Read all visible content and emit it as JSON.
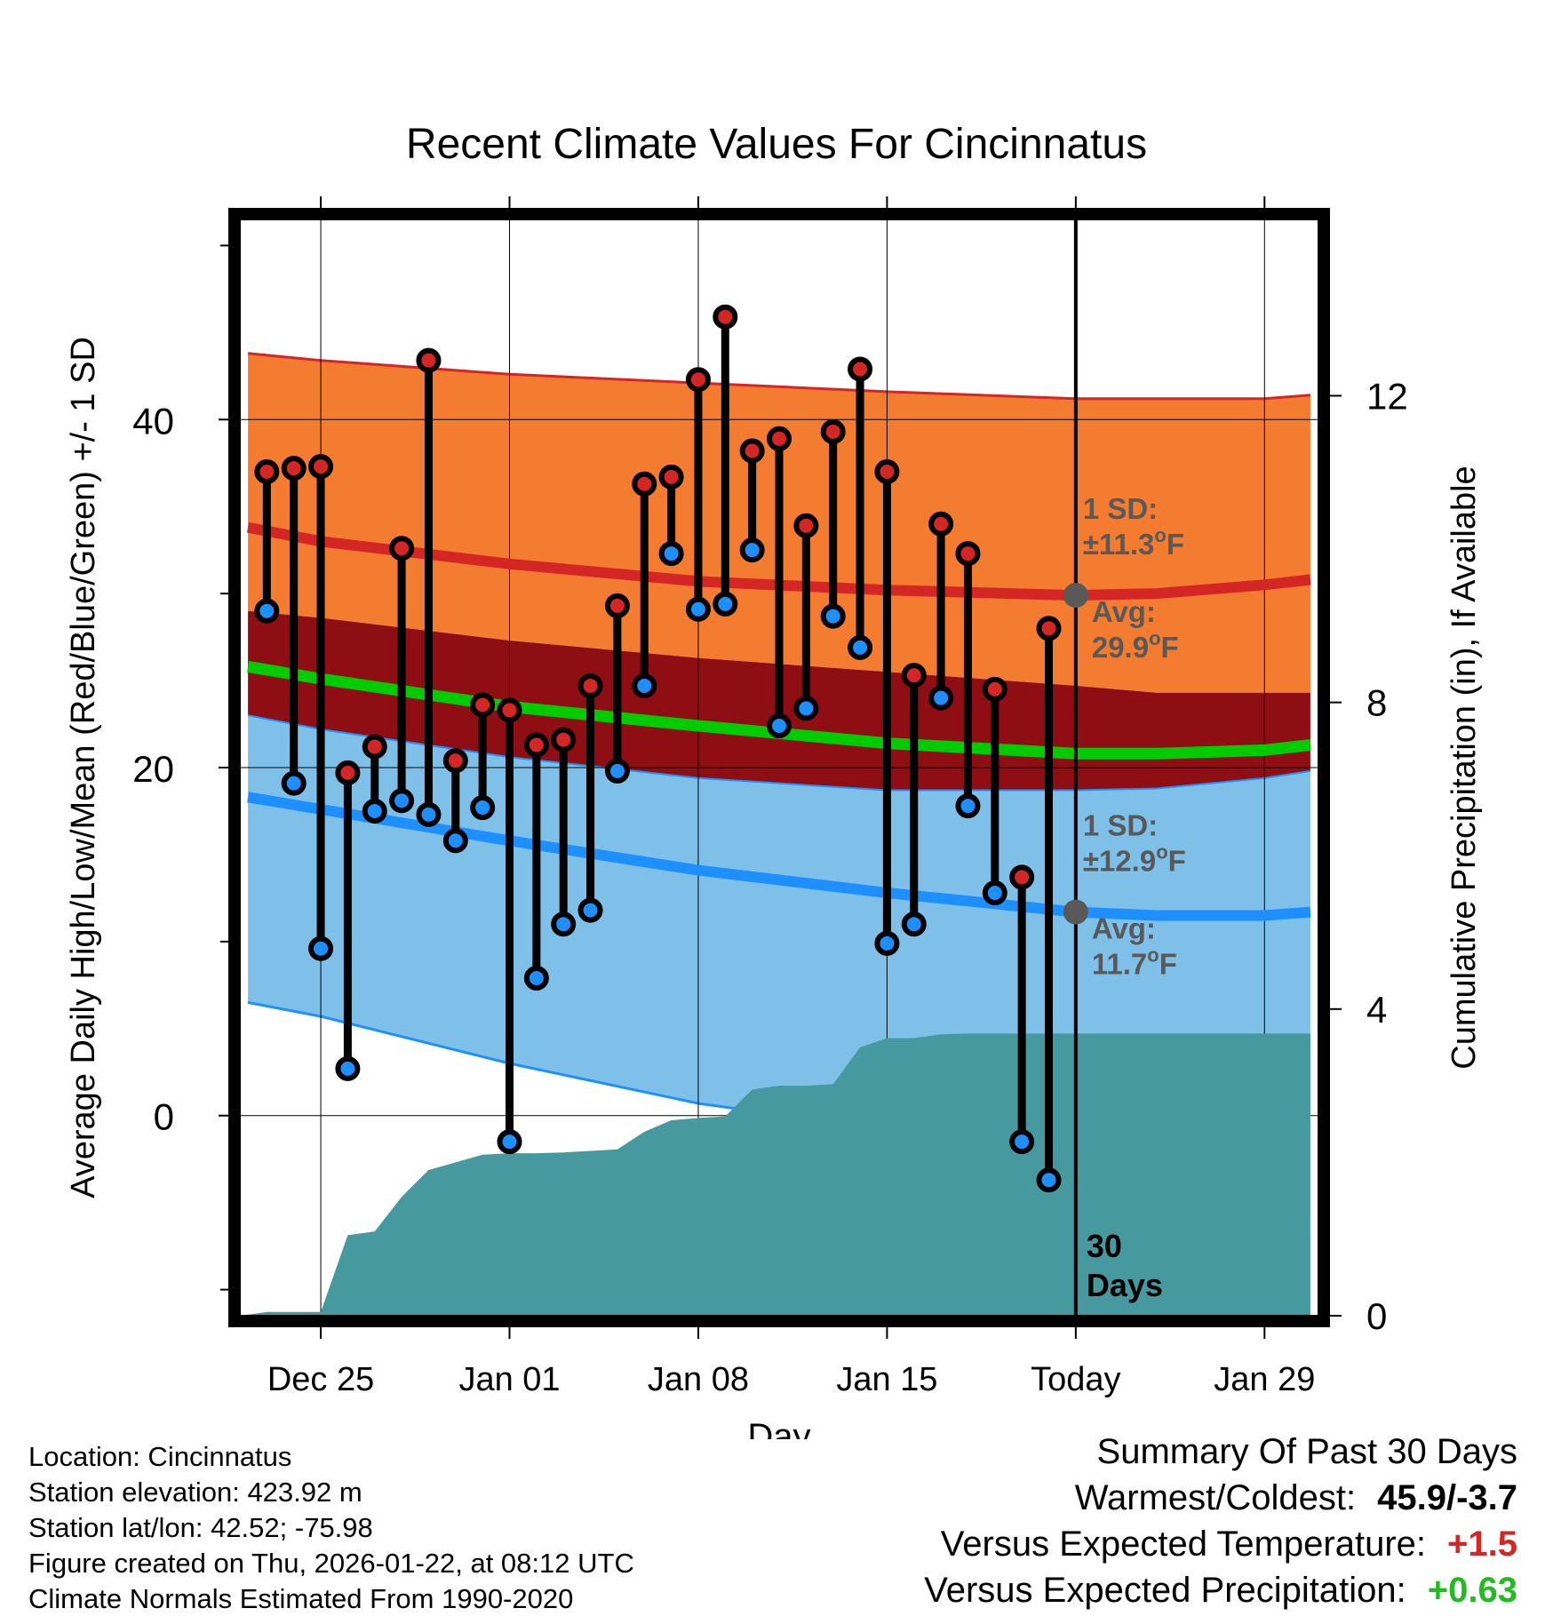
{
  "colors": {
    "high_band": "#f47c30",
    "mean_band": "#8e0e14",
    "low_band": "#7fc0e8",
    "high_line": "#d52626",
    "low_line": "#1e8fff",
    "mean_line": "#00cc00",
    "precip": "#46999f",
    "annotation": "#595959",
    "warm": "#d52626",
    "wet": "#22bb22"
  },
  "chart_data": {
    "type": "line",
    "title": "Recent Climate Values For Cincinnatus",
    "xlabel": "Day",
    "ylabel": "Average Daily High/Low/Mean (Red/Blue/Green) +/- 1 SD",
    "y2label": "Cumulative Precipitation (in), If Available",
    "xlim": [
      -3,
      37
    ],
    "ylim": [
      -11.5,
      51.5
    ],
    "y2lim": [
      0,
      14.3
    ],
    "y_ticks": [
      0,
      20,
      40
    ],
    "y_minor_ticks": [
      -10,
      10,
      30,
      50
    ],
    "y2_ticks": [
      0,
      4,
      8,
      12
    ],
    "x_ticks": [
      {
        "x": 0,
        "label": "Dec 25"
      },
      {
        "x": 7,
        "label": "Jan 01"
      },
      {
        "x": 14,
        "label": "Jan 08"
      },
      {
        "x": 21,
        "label": "Jan 15"
      },
      {
        "x": 28,
        "label": "Today"
      },
      {
        "x": 35,
        "label": "Jan 29"
      }
    ],
    "today_x": 28,
    "today_label": [
      "30",
      "Days"
    ],
    "normals_x": [
      -2.7,
      0,
      7,
      14,
      21,
      28,
      31,
      35,
      36.7
    ],
    "normal_high": [
      33.8,
      33.0,
      31.7,
      30.7,
      30.2,
      29.9,
      30.0,
      30.5,
      30.8
    ],
    "normal_high_hi": [
      43.8,
      43.4,
      42.6,
      42.1,
      41.6,
      41.2,
      41.2,
      41.2,
      41.4
    ],
    "normal_high_lo": [
      29.0,
      28.6,
      27.3,
      26.3,
      25.5,
      24.7,
      24.3,
      24.3,
      24.3
    ],
    "normal_mean": [
      25.8,
      25.1,
      23.5,
      22.4,
      21.4,
      20.8,
      20.8,
      21.0,
      21.3
    ],
    "normal_low": [
      18.3,
      17.6,
      15.8,
      14.1,
      12.8,
      11.7,
      11.5,
      11.5,
      11.7
    ],
    "normal_low_hi": [
      23.0,
      22.2,
      20.6,
      19.4,
      18.7,
      18.7,
      18.8,
      19.4,
      19.8
    ],
    "normal_low_lo": [
      6.5,
      5.7,
      3.0,
      0.7,
      -0.8,
      -1.0,
      -1.0,
      -0.7,
      -0.4
    ],
    "days": [
      -2,
      -1,
      0,
      1,
      2,
      3,
      4,
      5,
      6,
      7,
      8,
      9,
      10,
      11,
      12,
      13,
      14,
      15,
      16,
      17,
      18,
      19,
      20,
      21,
      22,
      23,
      24,
      25,
      26,
      27
    ],
    "daily_high": [
      37.0,
      37.2,
      37.3,
      19.7,
      21.2,
      32.6,
      43.4,
      20.4,
      23.6,
      23.3,
      21.3,
      21.6,
      24.7,
      29.3,
      36.3,
      36.7,
      42.3,
      45.9,
      38.2,
      38.9,
      33.9,
      39.3,
      42.9,
      37.0,
      25.3,
      34.0,
      32.3,
      24.5,
      13.7,
      28.0
    ],
    "daily_low": [
      29.0,
      19.1,
      9.6,
      2.7,
      17.5,
      18.1,
      17.3,
      15.8,
      17.7,
      -1.5,
      7.9,
      11.0,
      11.8,
      19.8,
      24.7,
      32.3,
      29.1,
      29.4,
      32.5,
      22.4,
      23.4,
      28.7,
      26.9,
      9.9,
      11.0,
      24.0,
      17.8,
      12.8,
      -1.5,
      -3.7
    ],
    "precip_x": [
      -3,
      -2,
      -1,
      0,
      1,
      2,
      3,
      4,
      5,
      6,
      7,
      8,
      9,
      10,
      11,
      12,
      13,
      14,
      15,
      16,
      17,
      18,
      19,
      20,
      21,
      22,
      23,
      24,
      25,
      26,
      27,
      28,
      36.7
    ],
    "precip": [
      0.0,
      0.05,
      0.05,
      0.05,
      1.05,
      1.1,
      1.55,
      1.9,
      2.0,
      2.1,
      2.12,
      2.12,
      2.13,
      2.15,
      2.17,
      2.4,
      2.55,
      2.58,
      2.6,
      2.95,
      3.0,
      3.0,
      3.02,
      3.5,
      3.62,
      3.62,
      3.67,
      3.68,
      3.68,
      3.68,
      3.68,
      3.68,
      3.68
    ],
    "annotations": {
      "high": {
        "sd_line1": "1 SD:",
        "sd_line2": "±11.3",
        "avg_line1": "Avg:",
        "avg_line2": "29.9",
        "unit": "F",
        "avg": 29.9
      },
      "low": {
        "sd_line1": "1 SD:",
        "sd_line2": "±12.9",
        "avg_line1": "Avg:",
        "avg_line2": "11.7",
        "unit": "F",
        "avg": 11.7
      },
      "degree_mark": "o"
    }
  },
  "info": {
    "location": "Location: Cincinnatus",
    "elevation": "Station elevation: 423.92 m",
    "latlon": "Station lat/lon: 42.52; -75.98",
    "created": "Figure created on Thu, 2026-01-22, at 08:12 UTC",
    "normals": "Climate Normals Estimated From 1990-2020"
  },
  "summary": {
    "title": "Summary Of Past 30 Days",
    "warm_label": "Warmest/Coldest:",
    "warm_value": "45.9/-3.7",
    "temp_label": "Versus Expected Temperature:",
    "temp_value": "+1.5",
    "precip_label": "Versus Expected Precipitation:",
    "precip_value": "+0.63"
  }
}
